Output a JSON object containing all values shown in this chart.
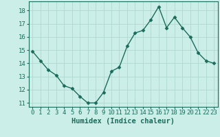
{
  "x": [
    0,
    1,
    2,
    3,
    4,
    5,
    6,
    7,
    8,
    9,
    10,
    11,
    12,
    13,
    14,
    15,
    16,
    17,
    18,
    19,
    20,
    21,
    22,
    23
  ],
  "y": [
    14.9,
    14.2,
    13.5,
    13.1,
    12.3,
    12.1,
    11.5,
    11.0,
    11.0,
    11.8,
    13.4,
    13.7,
    15.3,
    16.3,
    16.5,
    17.3,
    18.3,
    16.7,
    17.5,
    16.7,
    16.0,
    14.8,
    14.2,
    14.0
  ],
  "line_color": "#1a6b5a",
  "marker": "D",
  "marker_size": 2.5,
  "bg_color": "#cceee8",
  "grid_color": "#b0d8d0",
  "xlabel": "Humidex (Indice chaleur)",
  "ylim": [
    10.7,
    18.7
  ],
  "xlim": [
    -0.5,
    23.5
  ],
  "yticks": [
    11,
    12,
    13,
    14,
    15,
    16,
    17,
    18
  ],
  "xticks": [
    0,
    1,
    2,
    3,
    4,
    5,
    6,
    7,
    8,
    9,
    10,
    11,
    12,
    13,
    14,
    15,
    16,
    17,
    18,
    19,
    20,
    21,
    22,
    23
  ],
  "xlabel_fontsize": 7.5,
  "tick_fontsize": 6.5,
  "spine_color": "#1a6b5a"
}
